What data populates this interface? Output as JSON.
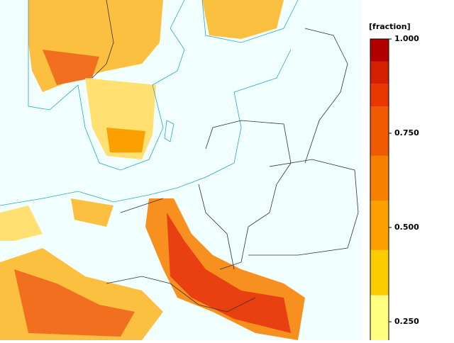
{
  "colorbar": {
    "label": "[fraction]",
    "lim": [
      0.2,
      1.0
    ],
    "levels": [
      1.0,
      0.94,
      0.88,
      0.82,
      0.69,
      0.57,
      0.44,
      0.32,
      0.2
    ],
    "colors": [
      "#b00000",
      "#d42000",
      "#e83800",
      "#f05a00",
      "#f88000",
      "#fca000",
      "#fccc00",
      "#ffff80"
    ],
    "ticks": [
      {
        "value": 1.0,
        "label": "1.000"
      },
      {
        "value": 0.75,
        "label": "0.750"
      },
      {
        "value": 0.5,
        "label": "0.500"
      },
      {
        "value": 0.25,
        "label": "0.250"
      }
    ]
  }
}
